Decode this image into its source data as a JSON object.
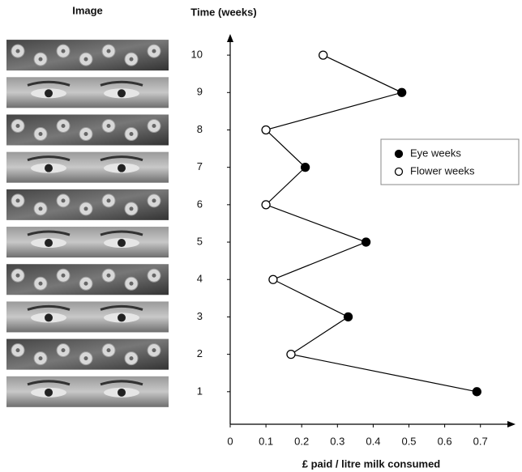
{
  "chart_data": {
    "type": "line",
    "image_header": "Image",
    "y_label": "Time (weeks)",
    "x_label": "£ paid / litre milk consumed",
    "y": [
      1,
      2,
      3,
      4,
      5,
      6,
      7,
      8,
      9,
      10
    ],
    "series": [
      {
        "name": "Eye weeks",
        "marker": "filled",
        "color": "#000000",
        "values": [
          0.69,
          null,
          0.33,
          null,
          0.38,
          null,
          0.21,
          null,
          0.48,
          null
        ]
      },
      {
        "name": "Flower weeks",
        "marker": "open",
        "color": "#000000",
        "values": [
          null,
          0.17,
          null,
          0.12,
          null,
          0.1,
          null,
          0.1,
          null,
          0.26
        ]
      }
    ],
    "xlim": [
      0,
      0.78
    ],
    "xticks": [
      0,
      0.1,
      0.2,
      0.3,
      0.4,
      0.5,
      0.6,
      0.7
    ],
    "ylim": [
      0.13,
      10.5
    ],
    "yticks": [
      1,
      2,
      3,
      4,
      5,
      6,
      7,
      8,
      9,
      10
    ],
    "legend": "right",
    "grid": false
  }
}
